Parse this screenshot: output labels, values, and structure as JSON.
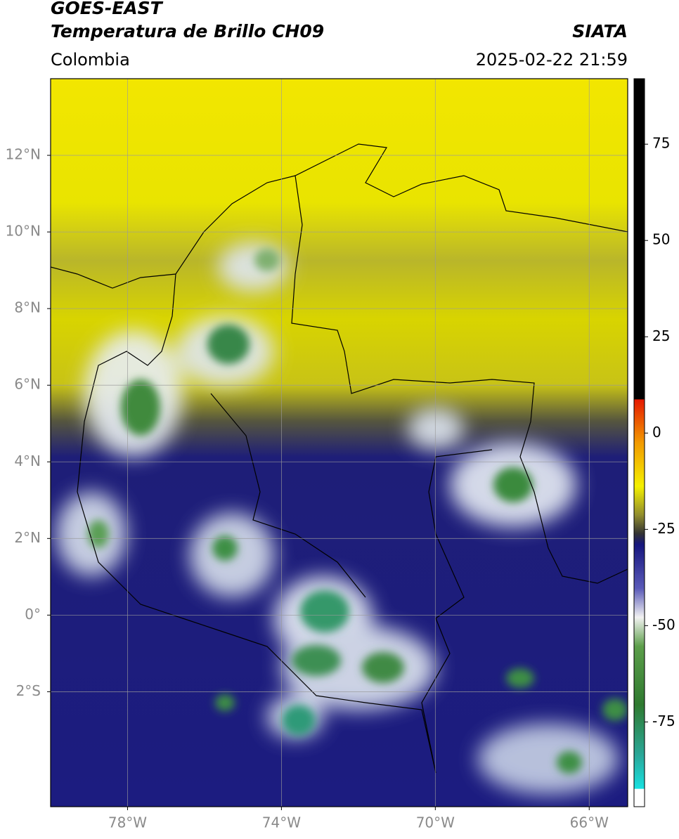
{
  "header": {
    "satellite": "GOES-EAST",
    "product": "Temperatura de Brillo CH09",
    "agency": "SIATA",
    "region": "Colombia",
    "timestamp": "2025-02-22 21:59"
  },
  "map": {
    "xlim": [
      -80,
      -65
    ],
    "ylim": [
      -5,
      14
    ],
    "xticks": [
      {
        "value": -78,
        "label": "78°W"
      },
      {
        "value": -74,
        "label": "74°W"
      },
      {
        "value": -70,
        "label": "70°W"
      },
      {
        "value": -66,
        "label": "66°W"
      }
    ],
    "yticks": [
      {
        "value": 12,
        "label": "12°N"
      },
      {
        "value": 10,
        "label": "10°N"
      },
      {
        "value": 8,
        "label": "8°N"
      },
      {
        "value": 6,
        "label": "6°N"
      },
      {
        "value": 4,
        "label": "4°N"
      },
      {
        "value": 2,
        "label": "2°N"
      },
      {
        "value": 0,
        "label": "0°"
      },
      {
        "value": -2,
        "label": "2°S"
      }
    ],
    "grid": true
  },
  "colorbar": {
    "ylim": [
      -97,
      92
    ],
    "yticks": [
      75,
      50,
      25,
      0,
      -25,
      -50,
      -75
    ]
  }
}
